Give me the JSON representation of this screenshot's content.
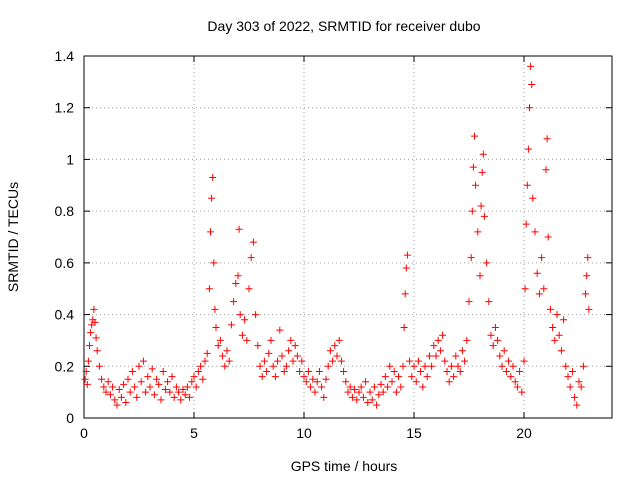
{
  "chart_data": {
    "type": "scatter",
    "title": "Day 303 of 2022, SRMTID for receiver dubo",
    "xlabel": "GPS time / hours",
    "ylabel": "SRMTID / TECUs",
    "xlim": [
      0,
      24
    ],
    "ylim": [
      0,
      1.4
    ],
    "xticks": [
      0,
      5,
      10,
      15,
      20
    ],
    "xtick_labels": [
      "0",
      "5",
      "10",
      "15",
      "20"
    ],
    "yticks": [
      0,
      0.2,
      0.4,
      0.6,
      0.8,
      1.0,
      1.2,
      1.4
    ],
    "ytick_labels": [
      "0",
      "0.2",
      "0.4",
      "0.6",
      "0.8",
      "1",
      "1.2",
      "1.4"
    ],
    "grid": true,
    "marker": "+",
    "color": "#ff0000",
    "series": [
      {
        "name": "SRMTID",
        "points": [
          [
            0.05,
            0.15
          ],
          [
            0.1,
            0.18
          ],
          [
            0.15,
            0.13
          ],
          [
            0.2,
            0.22
          ],
          [
            0.25,
            0.28
          ],
          [
            0.3,
            0.33
          ],
          [
            0.35,
            0.36
          ],
          [
            0.4,
            0.38
          ],
          [
            0.45,
            0.42
          ],
          [
            0.5,
            0.37
          ],
          [
            0.55,
            0.31
          ],
          [
            0.6,
            0.26
          ],
          [
            0.7,
            0.2
          ],
          [
            0.8,
            0.15
          ],
          [
            0.9,
            0.12
          ],
          [
            1.0,
            0.1
          ],
          [
            1.1,
            0.14
          ],
          [
            1.2,
            0.09
          ],
          [
            1.3,
            0.12
          ],
          [
            1.4,
            0.07
          ],
          [
            1.5,
            0.05
          ],
          [
            1.6,
            0.11
          ],
          [
            1.7,
            0.08
          ],
          [
            1.8,
            0.13
          ],
          [
            1.9,
            0.06
          ],
          [
            2.0,
            0.15
          ],
          [
            2.1,
            0.1
          ],
          [
            2.2,
            0.18
          ],
          [
            2.3,
            0.12
          ],
          [
            2.4,
            0.08
          ],
          [
            2.5,
            0.2
          ],
          [
            2.6,
            0.14
          ],
          [
            2.7,
            0.22
          ],
          [
            2.8,
            0.1
          ],
          [
            2.9,
            0.16
          ],
          [
            3.0,
            0.12
          ],
          [
            3.1,
            0.19
          ],
          [
            3.2,
            0.09
          ],
          [
            3.3,
            0.15
          ],
          [
            3.4,
            0.13
          ],
          [
            3.5,
            0.07
          ],
          [
            3.6,
            0.18
          ],
          [
            3.7,
            0.11
          ],
          [
            3.8,
            0.14
          ],
          [
            3.9,
            0.1
          ],
          [
            4.0,
            0.16
          ],
          [
            4.1,
            0.08
          ],
          [
            4.2,
            0.12
          ],
          [
            4.3,
            0.1
          ],
          [
            4.4,
            0.07
          ],
          [
            4.5,
            0.11
          ],
          [
            4.6,
            0.09
          ],
          [
            4.7,
            0.12
          ],
          [
            4.8,
            0.08
          ],
          [
            4.9,
            0.14
          ],
          [
            5.0,
            0.16
          ],
          [
            5.1,
            0.12
          ],
          [
            5.2,
            0.18
          ],
          [
            5.3,
            0.2
          ],
          [
            5.4,
            0.15
          ],
          [
            5.5,
            0.22
          ],
          [
            5.6,
            0.25
          ],
          [
            5.7,
            0.5
          ],
          [
            5.75,
            0.72
          ],
          [
            5.8,
            0.85
          ],
          [
            5.85,
            0.93
          ],
          [
            5.9,
            0.6
          ],
          [
            5.95,
            0.42
          ],
          [
            6.0,
            0.35
          ],
          [
            6.1,
            0.28
          ],
          [
            6.2,
            0.3
          ],
          [
            6.3,
            0.24
          ],
          [
            6.4,
            0.2
          ],
          [
            6.5,
            0.26
          ],
          [
            6.6,
            0.22
          ],
          [
            6.7,
            0.36
          ],
          [
            6.8,
            0.45
          ],
          [
            6.9,
            0.52
          ],
          [
            7.0,
            0.55
          ],
          [
            7.05,
            0.73
          ],
          [
            7.1,
            0.4
          ],
          [
            7.2,
            0.32
          ],
          [
            7.3,
            0.38
          ],
          [
            7.4,
            0.3
          ],
          [
            7.5,
            0.5
          ],
          [
            7.6,
            0.62
          ],
          [
            7.7,
            0.68
          ],
          [
            7.8,
            0.4
          ],
          [
            7.9,
            0.28
          ],
          [
            8.0,
            0.2
          ],
          [
            8.1,
            0.16
          ],
          [
            8.2,
            0.22
          ],
          [
            8.3,
            0.18
          ],
          [
            8.4,
            0.25
          ],
          [
            8.5,
            0.3
          ],
          [
            8.6,
            0.2
          ],
          [
            8.7,
            0.16
          ],
          [
            8.8,
            0.22
          ],
          [
            8.9,
            0.34
          ],
          [
            9.0,
            0.24
          ],
          [
            9.1,
            0.18
          ],
          [
            9.2,
            0.2
          ],
          [
            9.3,
            0.26
          ],
          [
            9.4,
            0.3
          ],
          [
            9.5,
            0.22
          ],
          [
            9.6,
            0.28
          ],
          [
            9.7,
            0.24
          ],
          [
            9.8,
            0.18
          ],
          [
            9.9,
            0.22
          ],
          [
            10.0,
            0.16
          ],
          [
            10.1,
            0.14
          ],
          [
            10.2,
            0.18
          ],
          [
            10.3,
            0.12
          ],
          [
            10.4,
            0.15
          ],
          [
            10.5,
            0.1
          ],
          [
            10.6,
            0.14
          ],
          [
            10.7,
            0.18
          ],
          [
            10.8,
            0.12
          ],
          [
            10.9,
            0.08
          ],
          [
            11.0,
            0.15
          ],
          [
            11.1,
            0.2
          ],
          [
            11.2,
            0.26
          ],
          [
            11.3,
            0.22
          ],
          [
            11.4,
            0.28
          ],
          [
            11.5,
            0.24
          ],
          [
            11.6,
            0.3
          ],
          [
            11.7,
            0.22
          ],
          [
            11.8,
            0.18
          ],
          [
            11.9,
            0.14
          ],
          [
            12.0,
            0.1
          ],
          [
            12.1,
            0.12
          ],
          [
            12.2,
            0.08
          ],
          [
            12.3,
            0.11
          ],
          [
            12.4,
            0.07
          ],
          [
            12.5,
            0.1
          ],
          [
            12.6,
            0.12
          ],
          [
            12.7,
            0.08
          ],
          [
            12.8,
            0.14
          ],
          [
            12.9,
            0.06
          ],
          [
            13.0,
            0.1
          ],
          [
            13.1,
            0.07
          ],
          [
            13.2,
            0.12
          ],
          [
            13.3,
            0.05
          ],
          [
            13.4,
            0.09
          ],
          [
            13.5,
            0.13
          ],
          [
            13.6,
            0.1
          ],
          [
            13.7,
            0.16
          ],
          [
            13.8,
            0.12
          ],
          [
            13.9,
            0.2
          ],
          [
            14.0,
            0.14
          ],
          [
            14.1,
            0.18
          ],
          [
            14.2,
            0.1
          ],
          [
            14.3,
            0.16
          ],
          [
            14.4,
            0.12
          ],
          [
            14.5,
            0.2
          ],
          [
            14.55,
            0.35
          ],
          [
            14.6,
            0.48
          ],
          [
            14.65,
            0.58
          ],
          [
            14.7,
            0.63
          ],
          [
            14.8,
            0.22
          ],
          [
            14.9,
            0.16
          ],
          [
            15.0,
            0.2
          ],
          [
            15.1,
            0.14
          ],
          [
            15.2,
            0.22
          ],
          [
            15.3,
            0.18
          ],
          [
            15.4,
            0.12
          ],
          [
            15.5,
            0.2
          ],
          [
            15.6,
            0.16
          ],
          [
            15.7,
            0.24
          ],
          [
            15.8,
            0.2
          ],
          [
            15.9,
            0.28
          ],
          [
            16.0,
            0.24
          ],
          [
            16.1,
            0.3
          ],
          [
            16.2,
            0.26
          ],
          [
            16.3,
            0.32
          ],
          [
            16.4,
            0.22
          ],
          [
            16.5,
            0.18
          ],
          [
            16.6,
            0.14
          ],
          [
            16.7,
            0.2
          ],
          [
            16.8,
            0.16
          ],
          [
            16.9,
            0.24
          ],
          [
            17.0,
            0.2
          ],
          [
            17.1,
            0.18
          ],
          [
            17.2,
            0.26
          ],
          [
            17.3,
            0.22
          ],
          [
            17.4,
            0.3
          ],
          [
            17.5,
            0.45
          ],
          [
            17.6,
            0.62
          ],
          [
            17.65,
            0.8
          ],
          [
            17.7,
            0.97
          ],
          [
            17.75,
            1.09
          ],
          [
            17.8,
            0.9
          ],
          [
            17.9,
            0.72
          ],
          [
            18.0,
            0.55
          ],
          [
            18.05,
            0.82
          ],
          [
            18.1,
            0.95
          ],
          [
            18.15,
            1.02
          ],
          [
            18.2,
            0.78
          ],
          [
            18.3,
            0.6
          ],
          [
            18.4,
            0.45
          ],
          [
            18.5,
            0.32
          ],
          [
            18.6,
            0.28
          ],
          [
            18.7,
            0.35
          ],
          [
            18.8,
            0.3
          ],
          [
            18.9,
            0.24
          ],
          [
            19.0,
            0.2
          ],
          [
            19.1,
            0.26
          ],
          [
            19.2,
            0.18
          ],
          [
            19.3,
            0.22
          ],
          [
            19.4,
            0.16
          ],
          [
            19.5,
            0.2
          ],
          [
            19.6,
            0.14
          ],
          [
            19.7,
            0.12
          ],
          [
            19.8,
            0.18
          ],
          [
            19.9,
            0.1
          ],
          [
            20.0,
            0.22
          ],
          [
            20.05,
            0.5
          ],
          [
            20.1,
            0.75
          ],
          [
            20.15,
            0.9
          ],
          [
            20.2,
            1.04
          ],
          [
            20.25,
            1.2
          ],
          [
            20.3,
            1.36
          ],
          [
            20.35,
            1.29
          ],
          [
            20.4,
            0.85
          ],
          [
            20.5,
            0.72
          ],
          [
            20.6,
            0.56
          ],
          [
            20.7,
            0.48
          ],
          [
            20.8,
            0.62
          ],
          [
            20.9,
            0.5
          ],
          [
            21.0,
            0.96
          ],
          [
            21.05,
            1.08
          ],
          [
            21.1,
            0.7
          ],
          [
            21.2,
            0.42
          ],
          [
            21.3,
            0.35
          ],
          [
            21.4,
            0.3
          ],
          [
            21.5,
            0.4
          ],
          [
            21.6,
            0.32
          ],
          [
            21.7,
            0.26
          ],
          [
            21.8,
            0.38
          ],
          [
            21.9,
            0.2
          ],
          [
            22.0,
            0.16
          ],
          [
            22.1,
            0.12
          ],
          [
            22.2,
            0.18
          ],
          [
            22.3,
            0.08
          ],
          [
            22.4,
            0.05
          ],
          [
            22.5,
            0.14
          ],
          [
            22.6,
            0.12
          ],
          [
            22.7,
            0.2
          ],
          [
            22.8,
            0.48
          ],
          [
            22.85,
            0.55
          ],
          [
            22.9,
            0.62
          ],
          [
            22.95,
            0.42
          ]
        ]
      }
    ]
  }
}
